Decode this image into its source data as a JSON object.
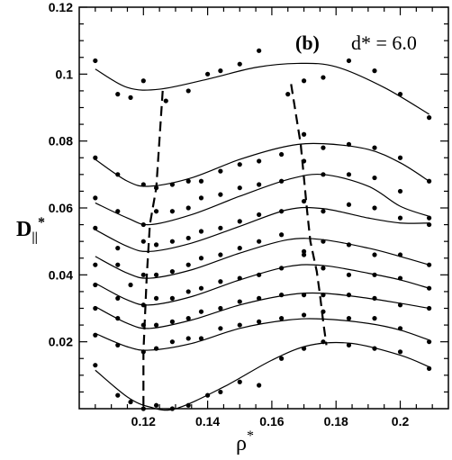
{
  "chart_data": {
    "type": "scatter",
    "title": "",
    "xlabel": "ρ*",
    "ylabel": "D||*",
    "xlim": [
      0.1,
      0.215
    ],
    "ylim": [
      0.0,
      0.12
    ],
    "xticks": [
      0.12,
      0.14,
      0.16,
      0.18,
      0.2
    ],
    "xtick_labels": [
      "0.12",
      "0.14",
      "0.16",
      "0.18",
      "0.2"
    ],
    "yticks": [
      0.02,
      0.04,
      0.06,
      0.08,
      0.1,
      0.12
    ],
    "ytick_labels": [
      "0.02",
      "0.04",
      "0.06",
      "0.08",
      "0.1",
      "0.12"
    ],
    "grid": false,
    "annotation": {
      "panel": "(b)",
      "text": "d* = 6.0"
    },
    "series": [
      {
        "points": [
          [
            0.105,
            0.104
          ],
          [
            0.112,
            0.094
          ],
          [
            0.116,
            0.093
          ],
          [
            0.12,
            0.098
          ],
          [
            0.127,
            0.092
          ],
          [
            0.134,
            0.095
          ],
          [
            0.14,
            0.1
          ],
          [
            0.144,
            0.101
          ],
          [
            0.15,
            0.103
          ],
          [
            0.156,
            0.107
          ],
          [
            0.165,
            0.094
          ],
          [
            0.17,
            0.098
          ],
          [
            0.176,
            0.099
          ],
          [
            0.184,
            0.104
          ],
          [
            0.192,
            0.101
          ],
          [
            0.2,
            0.094
          ],
          [
            0.209,
            0.087
          ]
        ],
        "curve": [
          [
            0.105,
            0.1015
          ],
          [
            0.115,
            0.096
          ],
          [
            0.125,
            0.0955
          ],
          [
            0.14,
            0.0985
          ],
          [
            0.155,
            0.102
          ],
          [
            0.168,
            0.1032
          ],
          [
            0.18,
            0.1022
          ],
          [
            0.195,
            0.096
          ],
          [
            0.209,
            0.088
          ]
        ]
      },
      {
        "points": [
          [
            0.105,
            0.075
          ],
          [
            0.112,
            0.07
          ],
          [
            0.12,
            0.067
          ],
          [
            0.124,
            0.066
          ],
          [
            0.129,
            0.067
          ],
          [
            0.134,
            0.068
          ],
          [
            0.138,
            0.068
          ],
          [
            0.144,
            0.071
          ],
          [
            0.15,
            0.073
          ],
          [
            0.156,
            0.074
          ],
          [
            0.163,
            0.076
          ],
          [
            0.17,
            0.082
          ],
          [
            0.176,
            0.078
          ],
          [
            0.184,
            0.079
          ],
          [
            0.192,
            0.078
          ],
          [
            0.2,
            0.075
          ],
          [
            0.209,
            0.068
          ]
        ],
        "curve": [
          [
            0.105,
            0.0745
          ],
          [
            0.115,
            0.068
          ],
          [
            0.122,
            0.0665
          ],
          [
            0.135,
            0.069
          ],
          [
            0.15,
            0.0745
          ],
          [
            0.165,
            0.0785
          ],
          [
            0.176,
            0.0792
          ],
          [
            0.19,
            0.0775
          ],
          [
            0.2,
            0.0735
          ],
          [
            0.209,
            0.068
          ]
        ]
      },
      {
        "points": [
          [
            0.105,
            0.063
          ],
          [
            0.112,
            0.059
          ],
          [
            0.12,
            0.055
          ],
          [
            0.124,
            0.059
          ],
          [
            0.129,
            0.059
          ],
          [
            0.134,
            0.06
          ],
          [
            0.138,
            0.063
          ],
          [
            0.144,
            0.064
          ],
          [
            0.15,
            0.066
          ],
          [
            0.156,
            0.067
          ],
          [
            0.163,
            0.068
          ],
          [
            0.17,
            0.074
          ],
          [
            0.176,
            0.07
          ],
          [
            0.184,
            0.07
          ],
          [
            0.192,
            0.069
          ],
          [
            0.2,
            0.065
          ],
          [
            0.209,
            0.057
          ]
        ],
        "curve": [
          [
            0.105,
            0.0615
          ],
          [
            0.115,
            0.057
          ],
          [
            0.122,
            0.055
          ],
          [
            0.135,
            0.058
          ],
          [
            0.15,
            0.0635
          ],
          [
            0.165,
            0.0685
          ],
          [
            0.176,
            0.07
          ],
          [
            0.19,
            0.0665
          ],
          [
            0.2,
            0.0605
          ],
          [
            0.209,
            0.0575
          ]
        ]
      },
      {
        "points": [
          [
            0.105,
            0.054
          ],
          [
            0.112,
            0.048
          ],
          [
            0.12,
            0.05
          ],
          [
            0.124,
            0.049
          ],
          [
            0.129,
            0.05
          ],
          [
            0.134,
            0.051
          ],
          [
            0.138,
            0.053
          ],
          [
            0.144,
            0.054
          ],
          [
            0.15,
            0.056
          ],
          [
            0.156,
            0.058
          ],
          [
            0.163,
            0.059
          ],
          [
            0.17,
            0.062
          ],
          [
            0.176,
            0.059
          ],
          [
            0.184,
            0.061
          ],
          [
            0.192,
            0.06
          ],
          [
            0.2,
            0.057
          ],
          [
            0.209,
            0.055
          ]
        ],
        "curve": [
          [
            0.105,
            0.0535
          ],
          [
            0.115,
            0.0485
          ],
          [
            0.122,
            0.047
          ],
          [
            0.135,
            0.0495
          ],
          [
            0.15,
            0.0545
          ],
          [
            0.165,
            0.0595
          ],
          [
            0.176,
            0.0598
          ],
          [
            0.19,
            0.057
          ],
          [
            0.2,
            0.0555
          ],
          [
            0.209,
            0.0555
          ]
        ]
      },
      {
        "points": [
          [
            0.105,
            0.043
          ],
          [
            0.112,
            0.043
          ],
          [
            0.116,
            0.037
          ],
          [
            0.12,
            0.04
          ],
          [
            0.124,
            0.04
          ],
          [
            0.129,
            0.041
          ],
          [
            0.134,
            0.043
          ],
          [
            0.138,
            0.045
          ],
          [
            0.144,
            0.046
          ],
          [
            0.15,
            0.048
          ],
          [
            0.156,
            0.05
          ],
          [
            0.163,
            0.052
          ],
          [
            0.17,
            0.047
          ],
          [
            0.176,
            0.05
          ],
          [
            0.184,
            0.049
          ],
          [
            0.192,
            0.046
          ],
          [
            0.2,
            0.046
          ],
          [
            0.209,
            0.043
          ]
        ],
        "curve": [
          [
            0.105,
            0.0455
          ],
          [
            0.115,
            0.0405
          ],
          [
            0.122,
            0.039
          ],
          [
            0.135,
            0.0415
          ],
          [
            0.15,
            0.0465
          ],
          [
            0.165,
            0.0505
          ],
          [
            0.176,
            0.0505
          ],
          [
            0.19,
            0.048
          ],
          [
            0.2,
            0.0455
          ],
          [
            0.209,
            0.043
          ]
        ]
      },
      {
        "points": [
          [
            0.105,
            0.037
          ],
          [
            0.112,
            0.033
          ],
          [
            0.12,
            0.031
          ],
          [
            0.124,
            0.033
          ],
          [
            0.129,
            0.033
          ],
          [
            0.134,
            0.035
          ],
          [
            0.138,
            0.036
          ],
          [
            0.144,
            0.038
          ],
          [
            0.15,
            0.039
          ],
          [
            0.156,
            0.04
          ],
          [
            0.163,
            0.042
          ],
          [
            0.17,
            0.046
          ],
          [
            0.176,
            0.042
          ],
          [
            0.184,
            0.04
          ],
          [
            0.192,
            0.04
          ],
          [
            0.2,
            0.039
          ],
          [
            0.209,
            0.036
          ]
        ],
        "curve": [
          [
            0.105,
            0.0375
          ],
          [
            0.115,
            0.0325
          ],
          [
            0.122,
            0.031
          ],
          [
            0.135,
            0.0335
          ],
          [
            0.15,
            0.0385
          ],
          [
            0.165,
            0.0425
          ],
          [
            0.176,
            0.0428
          ],
          [
            0.19,
            0.0405
          ],
          [
            0.2,
            0.0385
          ],
          [
            0.209,
            0.036
          ]
        ]
      },
      {
        "points": [
          [
            0.105,
            0.03
          ],
          [
            0.112,
            0.027
          ],
          [
            0.12,
            0.025
          ],
          [
            0.124,
            0.025
          ],
          [
            0.129,
            0.026
          ],
          [
            0.134,
            0.027
          ],
          [
            0.138,
            0.029
          ],
          [
            0.144,
            0.03
          ],
          [
            0.15,
            0.032
          ],
          [
            0.156,
            0.033
          ],
          [
            0.163,
            0.034
          ],
          [
            0.17,
            0.034
          ],
          [
            0.176,
            0.034
          ],
          [
            0.184,
            0.034
          ],
          [
            0.192,
            0.033
          ],
          [
            0.2,
            0.031
          ],
          [
            0.209,
            0.03
          ]
        ],
        "curve": [
          [
            0.105,
            0.0305
          ],
          [
            0.115,
            0.0255
          ],
          [
            0.122,
            0.024
          ],
          [
            0.135,
            0.0265
          ],
          [
            0.15,
            0.031
          ],
          [
            0.165,
            0.034
          ],
          [
            0.176,
            0.0345
          ],
          [
            0.19,
            0.033
          ],
          [
            0.2,
            0.0315
          ],
          [
            0.209,
            0.03
          ]
        ]
      },
      {
        "points": [
          [
            0.105,
            0.022
          ],
          [
            0.112,
            0.019
          ],
          [
            0.12,
            0.017
          ],
          [
            0.124,
            0.018
          ],
          [
            0.129,
            0.02
          ],
          [
            0.134,
            0.021
          ],
          [
            0.138,
            0.021
          ],
          [
            0.144,
            0.024
          ],
          [
            0.15,
            0.025
          ],
          [
            0.156,
            0.026
          ],
          [
            0.163,
            0.027
          ],
          [
            0.17,
            0.028
          ],
          [
            0.176,
            0.029
          ],
          [
            0.184,
            0.027
          ],
          [
            0.192,
            0.027
          ],
          [
            0.2,
            0.024
          ],
          [
            0.209,
            0.02
          ]
        ],
        "curve": [
          [
            0.105,
            0.0225
          ],
          [
            0.115,
            0.0185
          ],
          [
            0.122,
            0.0175
          ],
          [
            0.135,
            0.0195
          ],
          [
            0.15,
            0.024
          ],
          [
            0.165,
            0.0265
          ],
          [
            0.176,
            0.0268
          ],
          [
            0.19,
            0.0255
          ],
          [
            0.2,
            0.0235
          ],
          [
            0.209,
            0.0205
          ]
        ]
      },
      {
        "points": [
          [
            0.105,
            0.013
          ],
          [
            0.112,
            0.004
          ],
          [
            0.116,
            0.002
          ],
          [
            0.12,
            0.0
          ],
          [
            0.124,
            0.001
          ],
          [
            0.129,
            0.0
          ],
          [
            0.134,
            0.001
          ],
          [
            0.14,
            0.004
          ],
          [
            0.144,
            0.005
          ],
          [
            0.15,
            0.008
          ],
          [
            0.156,
            0.007
          ],
          [
            0.163,
            0.015
          ],
          [
            0.17,
            0.018
          ],
          [
            0.176,
            0.02
          ],
          [
            0.184,
            0.019
          ],
          [
            0.192,
            0.018
          ],
          [
            0.2,
            0.017
          ],
          [
            0.209,
            0.012
          ]
        ],
        "curve": [
          [
            0.105,
            0.0115
          ],
          [
            0.115,
            0.0035
          ],
          [
            0.122,
            0.0005
          ],
          [
            0.13,
            0.0
          ],
          [
            0.145,
            0.0065
          ],
          [
            0.16,
            0.0145
          ],
          [
            0.172,
            0.019
          ],
          [
            0.185,
            0.0195
          ],
          [
            0.2,
            0.016
          ],
          [
            0.209,
            0.0125
          ]
        ]
      }
    ],
    "dashed_lines": [
      [
        [
          0.126,
          0.095
        ],
        [
          0.124,
          0.066
        ],
        [
          0.122,
          0.055
        ],
        [
          0.121,
          0.039
        ],
        [
          0.12,
          0.017
        ],
        [
          0.12,
          0.0
        ]
      ],
      [
        [
          0.166,
          0.097
        ],
        [
          0.169,
          0.079
        ],
        [
          0.17,
          0.069
        ],
        [
          0.171,
          0.059
        ],
        [
          0.172,
          0.05
        ],
        [
          0.174,
          0.041
        ],
        [
          0.175,
          0.034
        ],
        [
          0.176,
          0.026
        ],
        [
          0.177,
          0.019
        ]
      ]
    ]
  }
}
